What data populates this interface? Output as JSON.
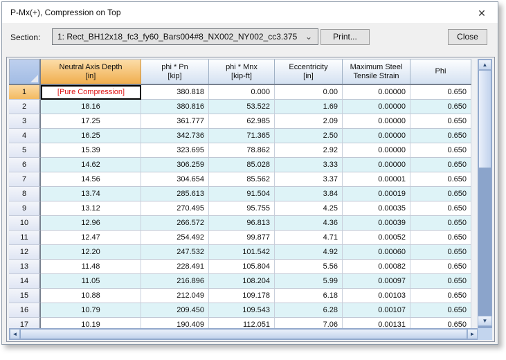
{
  "window": {
    "title": "P-Mx(+), Compression on Top"
  },
  "icons": {
    "close": "✕",
    "dropdown": "⌄",
    "up": "▲",
    "down": "▼",
    "left": "◄",
    "right": "►"
  },
  "controls": {
    "section_label": "Section:",
    "section_value": "1: Rect_BH12x18_fc3_fy60_Bars004#8_NX002_NY002_cc3.375",
    "print_label": "Print...",
    "close_label": "Close"
  },
  "grid": {
    "columns": [
      {
        "line1": "Neutral Axis Depth",
        "line2": "[in]",
        "selected": true
      },
      {
        "line1": "phi * Pn",
        "line2": "[kip]"
      },
      {
        "line1": "phi * Mnx",
        "line2": "[kip-ft]"
      },
      {
        "line1": "Eccentricity",
        "line2": "[in]"
      },
      {
        "line1": "Maximum Steel",
        "line2": "Tensile Strain"
      },
      {
        "line1": "Phi",
        "line2": ""
      }
    ],
    "rows": [
      {
        "n": "1",
        "selected": true,
        "cells": [
          "[Pure Compression]",
          "380.818",
          "0.000",
          "0.00",
          "0.00000",
          "0.650"
        ]
      },
      {
        "n": "2",
        "cells": [
          "18.16",
          "380.816",
          "53.522",
          "1.69",
          "0.00000",
          "0.650"
        ]
      },
      {
        "n": "3",
        "cells": [
          "17.25",
          "361.777",
          "62.985",
          "2.09",
          "0.00000",
          "0.650"
        ]
      },
      {
        "n": "4",
        "cells": [
          "16.25",
          "342.736",
          "71.365",
          "2.50",
          "0.00000",
          "0.650"
        ]
      },
      {
        "n": "5",
        "cells": [
          "15.39",
          "323.695",
          "78.862",
          "2.92",
          "0.00000",
          "0.650"
        ]
      },
      {
        "n": "6",
        "cells": [
          "14.62",
          "306.259",
          "85.028",
          "3.33",
          "0.00000",
          "0.650"
        ]
      },
      {
        "n": "7",
        "cells": [
          "14.56",
          "304.654",
          "85.562",
          "3.37",
          "0.00001",
          "0.650"
        ]
      },
      {
        "n": "8",
        "cells": [
          "13.74",
          "285.613",
          "91.504",
          "3.84",
          "0.00019",
          "0.650"
        ]
      },
      {
        "n": "9",
        "cells": [
          "13.12",
          "270.495",
          "95.755",
          "4.25",
          "0.00035",
          "0.650"
        ]
      },
      {
        "n": "10",
        "cells": [
          "12.96",
          "266.572",
          "96.813",
          "4.36",
          "0.00039",
          "0.650"
        ]
      },
      {
        "n": "11",
        "cells": [
          "12.47",
          "254.492",
          "99.877",
          "4.71",
          "0.00052",
          "0.650"
        ]
      },
      {
        "n": "12",
        "cells": [
          "12.20",
          "247.532",
          "101.542",
          "4.92",
          "0.00060",
          "0.650"
        ]
      },
      {
        "n": "13",
        "cells": [
          "11.48",
          "228.491",
          "105.804",
          "5.56",
          "0.00082",
          "0.650"
        ]
      },
      {
        "n": "14",
        "cells": [
          "11.05",
          "216.896",
          "108.204",
          "5.99",
          "0.00097",
          "0.650"
        ]
      },
      {
        "n": "15",
        "cells": [
          "10.88",
          "212.049",
          "109.178",
          "6.18",
          "0.00103",
          "0.650"
        ]
      },
      {
        "n": "16",
        "cells": [
          "10.79",
          "209.450",
          "109.543",
          "6.28",
          "0.00107",
          "0.650"
        ]
      },
      {
        "n": "17",
        "cells": [
          "10.19",
          "190.409",
          "112.051",
          "7.06",
          "0.00131",
          "0.650"
        ]
      }
    ]
  },
  "colors": {
    "selected_header_orange": "#f0ae4e",
    "header_blue": "#d4e1f1",
    "row_alt_cyan": "#def3f7",
    "selected_cell_text": "#dd1111",
    "scrollbar_track": "#8ba4cb"
  }
}
